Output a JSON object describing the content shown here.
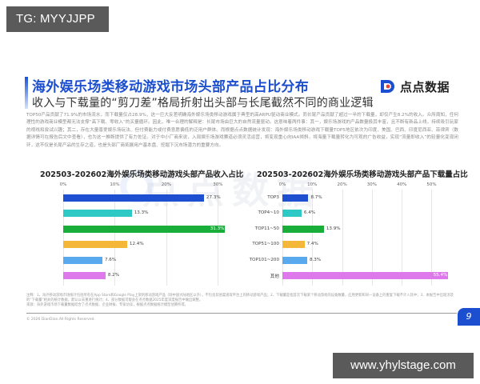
{
  "overlays": {
    "top_badge": "TG: MYYJJPP",
    "bottom_badge": "www.yhylstage.com"
  },
  "header": {
    "title": "海外娱乐场类移动游戏市场头部产品占比分布",
    "subtitle": "收入与下载量的“剪刀差”格局折射出头部与长尾截然不同的商业逻辑",
    "logo_text": "点点数据"
  },
  "body": {
    "paragraph": "TOP50产品贡献了71.9%的市场流水，而下载量仅占28.9%，这一巨大反差明确海外娱乐场类移动游戏属于典型的高ARPU驱动商业模式。而长尾产品贡献了超过一半的下载量，却仅产生8.2%的收入。众所周知，任何理性的游戏商业模型都无法支撑“高下载、零收入”的买量循环。因此，唯一合理的解释是：长尾市场由巨大的自然流量驱动。这意味着两件事：其一，娱乐场游戏的产品数量极其丰富，且不断有新品上线，持续吸引玩家的视线和尝试兴趣；其二，存在大量喜爱娱乐场玩法、但付费能力或付费意愿偏低的泛用户群体。而根据点点数据统计发现：海外娱乐场类移动游戏下载量TOP5地区依次为印度、美国、巴西、印度尼西亚、菲律宾（数据详情可在报告后文中查看），也为这一推断提供了有力佐证。对于中小厂商来说，入局娱乐场游戏赛道必须灵活运营，将变现重心向IAA倾斜，将海量下载量转化为可观的广告收益，实现“流量即收入”的轻量化变现闭环，这不仅是长尾产品的生存之道，也是头部厂商拓展用户基本盘、挖掘下沉市场潜力的重要方向。"
  },
  "watermark": "点点数据",
  "chart_data": [
    {
      "type": "bar",
      "orientation": "horizontal",
      "title": "202503-202602海外娱乐场类移动游戏头部产品收入占比",
      "categories": [
        "TOP3",
        "TOP4~10",
        "TOP11~50",
        "TOP51~100",
        "TOP101~200",
        "其他"
      ],
      "values": [
        27.3,
        13.3,
        31.3,
        12.4,
        7.6,
        8.2
      ],
      "labels": [
        "27.3%",
        "13.3%",
        "31.3%",
        "12.4%",
        "7.6%",
        "8.2%"
      ],
      "colors": [
        "#1f4fd1",
        "#2ec9c4",
        "#19ad3a",
        "#f4b73a",
        "#59a9ef",
        "#dd79ea"
      ],
      "xticks": [
        "0%",
        "10%",
        "20%",
        "30%"
      ],
      "xlim": [
        0,
        31.5
      ],
      "xlabel": "",
      "ylabel": "",
      "grid": true,
      "legend": "none"
    },
    {
      "type": "bar",
      "orientation": "horizontal",
      "title": "202503-202602海外娱乐场类移动游戏头部产品下载量占比",
      "categories": [
        "TOP3",
        "TOP4~10",
        "TOP11~50",
        "TOP51~100",
        "TOP101~200",
        "其他"
      ],
      "values": [
        8.7,
        6.4,
        13.9,
        7.4,
        8.3,
        55.4
      ],
      "labels": [
        "8.7%",
        "6.4%",
        "13.9%",
        "7.4%",
        "8.3%",
        "55.4%"
      ],
      "colors": [
        "#1f4fd1",
        "#2ec9c4",
        "#19ad3a",
        "#f4b73a",
        "#59a9ef",
        "#dd79ea"
      ],
      "xticks": [
        "0%",
        "10%",
        "20%",
        "30%",
        "40%",
        "50%"
      ],
      "xlim": [
        0,
        55.5
      ],
      "xlabel": "",
      "ylabel": "",
      "grid": true,
      "legend": "none"
    }
  ],
  "footer": {
    "notes": "注释：1、海外移动游戏市场统计包括所有在App Store和Google Play上架的移动游戏产品（除中国大陆地区以外），不包含其他渠道或平台上的移动游戏产品；2、下载量是指首次下载某个移动游戏的设备数量，应用更新和同一设备上的重复下载不计入其中；3、本报告中出现涉及的“下载量”相关的统计数据，默认以去重进行统计；4、部分数据可能会在点点数据2025年度深度报告中做出调整。",
    "source": "来源：海外游戏市场下载量数据结合了点点数据、企业财报、专家访谈，根据点点数据统计模型估算所得。",
    "copyright": "© 2026 DianDian.All Rights Reserved.",
    "page_number": "9"
  },
  "colors": {
    "accent": "#1c4fcf",
    "badge_bg": "#5a5a5a"
  }
}
